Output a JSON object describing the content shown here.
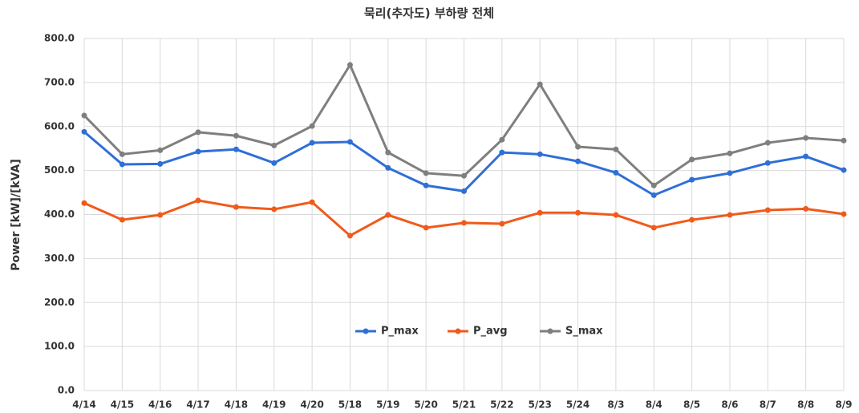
{
  "chart_data": {
    "type": "line",
    "title": "묵리(추자도) 부하량 전체",
    "y_label": "Power [kW]/[kVA]",
    "categories": [
      "4/14",
      "4/15",
      "4/16",
      "4/17",
      "4/18",
      "4/19",
      "4/20",
      "5/18",
      "5/19",
      "5/20",
      "5/21",
      "5/22",
      "5/23",
      "5/24",
      "8/3",
      "8/4",
      "8/5",
      "8/6",
      "8/7",
      "8/8",
      "8/9"
    ],
    "series": [
      {
        "name": "P_max",
        "color": "#2f6fd6",
        "values": [
          588,
          514,
          515,
          543,
          548,
          517,
          563,
          565,
          506,
          466,
          453,
          541,
          537,
          521,
          495,
          444,
          479,
          494,
          517,
          532,
          501
        ]
      },
      {
        "name": "P_avg",
        "color": "#f05a1a",
        "values": [
          426,
          388,
          399,
          432,
          417,
          412,
          428,
          352,
          399,
          370,
          381,
          379,
          404,
          404,
          399,
          370,
          388,
          399,
          410,
          413,
          401
        ]
      },
      {
        "name": "S_max",
        "color": "#7f7f7f",
        "values": [
          625,
          537,
          546,
          587,
          579,
          557,
          601,
          740,
          541,
          494,
          488,
          570,
          696,
          554,
          548,
          466,
          525,
          539,
          563,
          574,
          568
        ]
      }
    ],
    "ylim": [
      0,
      800
    ],
    "yticks": [
      {
        "value": 0,
        "label": "0.0"
      },
      {
        "value": 100,
        "label": "100.0"
      },
      {
        "value": 200,
        "label": "200.0"
      },
      {
        "value": 300,
        "label": "300.0"
      },
      {
        "value": 400,
        "label": "400.0"
      },
      {
        "value": 500,
        "label": "500.0"
      },
      {
        "value": 600,
        "label": "600.0"
      },
      {
        "value": 700,
        "label": "700.0"
      },
      {
        "value": 800,
        "label": "800.0"
      }
    ],
    "grid": true,
    "legend": "center"
  }
}
